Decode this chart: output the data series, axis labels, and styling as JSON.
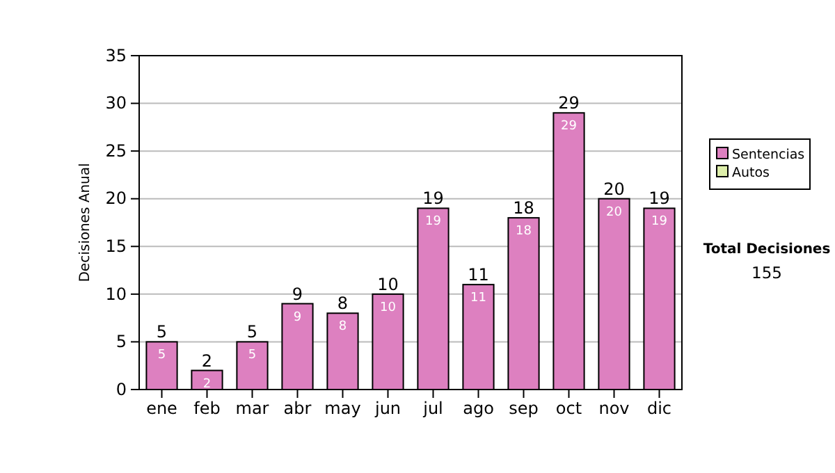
{
  "chart_data": {
    "type": "bar",
    "stacked": true,
    "ylabel": "Decisiones Anual",
    "categories": [
      "ene",
      "feb",
      "mar",
      "abr",
      "may",
      "jun",
      "jul",
      "ago",
      "sep",
      "oct",
      "nov",
      "dic"
    ],
    "series": [
      {
        "name": "Sentencias",
        "color": "#dd80c0",
        "values": [
          5,
          2,
          5,
          9,
          8,
          10,
          19,
          11,
          18,
          29,
          20,
          19
        ],
        "value_labels": [
          "5",
          "2",
          "5",
          "9",
          "8",
          "10",
          "19",
          "11",
          "18",
          "29",
          "20",
          "19"
        ]
      },
      {
        "name": "Autos",
        "color": "#ddeeaa",
        "values": [
          0,
          0,
          0,
          0,
          0,
          0,
          0,
          0,
          0,
          0,
          0,
          0
        ]
      }
    ],
    "totals": [
      "5",
      "2",
      "5",
      "9",
      "8",
      "10",
      "19",
      "11",
      "18",
      "29",
      "20",
      "19"
    ],
    "ylim": [
      0,
      35
    ],
    "yticks": [
      0,
      5,
      10,
      15,
      20,
      25,
      30,
      35
    ],
    "grid": "y",
    "legend": "right",
    "annotations": [
      "Total Decisiones",
      "155"
    ]
  }
}
